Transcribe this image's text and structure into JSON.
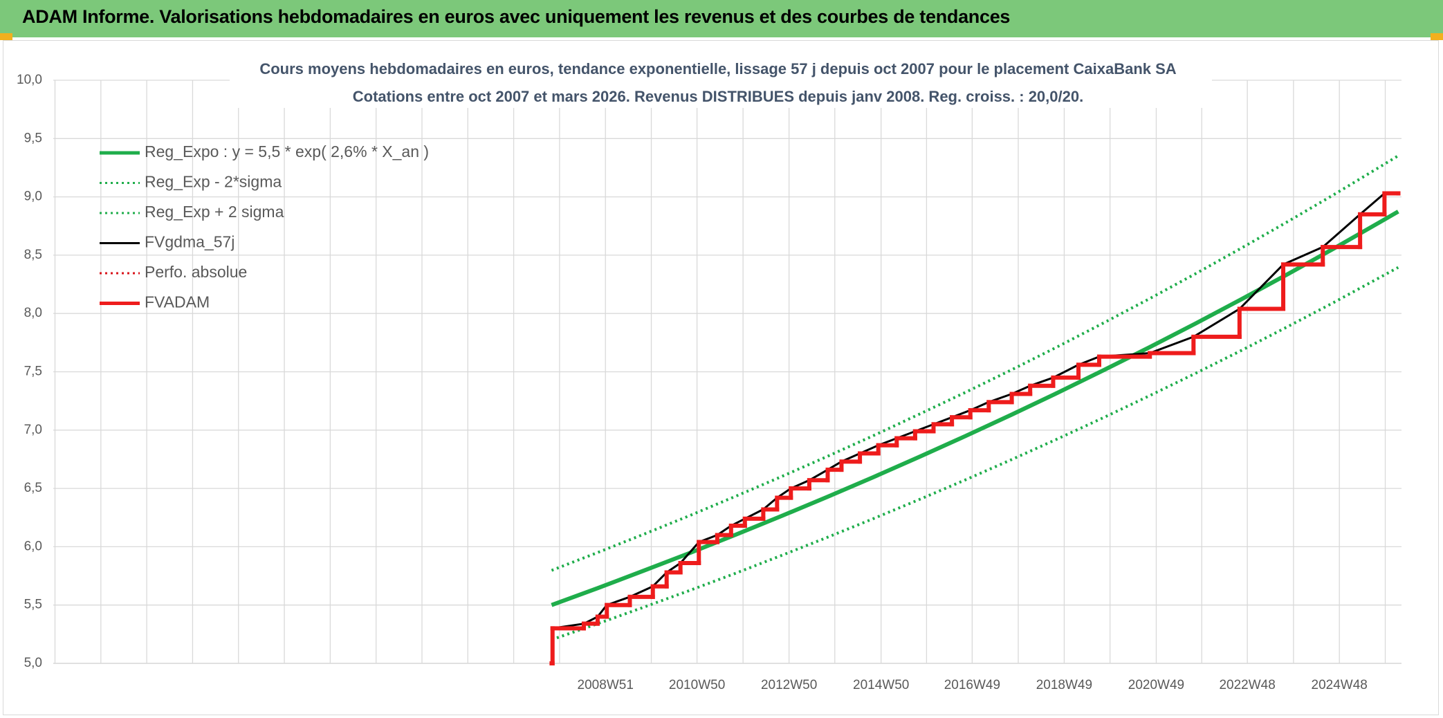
{
  "banner": "ADAM Informe. Valorisations hebdomadaires en euros avec uniquement les revenus et des courbes de tendances",
  "chart_data": {
    "type": "line",
    "title": "Cours moyens hebdomadaires en euros, tendance exponentielle, lissage 57 j depuis oct 2007 pour le placement CaixaBank SA",
    "subtitle": "Cotations entre oct 2007 et mars 2026. Revenus DISTRIBUES depuis janv 2008. Reg. croiss. : 20,0/20.",
    "xlim": [
      1996.97,
      2026.27
    ],
    "xticks": [
      {
        "value": 2008.97,
        "label": "2008W51"
      },
      {
        "value": 2010.96,
        "label": "2010W50"
      },
      {
        "value": 2012.96,
        "label": "2012W50"
      },
      {
        "value": 2014.96,
        "label": "2014W50"
      },
      {
        "value": 2016.94,
        "label": "2016W49"
      },
      {
        "value": 2018.94,
        "label": "2018W49"
      },
      {
        "value": 2020.94,
        "label": "2020W49"
      },
      {
        "value": 2022.92,
        "label": "2022W48"
      },
      {
        "value": 2024.92,
        "label": "2024W48"
      }
    ],
    "ylim": [
      5,
      10
    ],
    "yticks": [
      {
        "value": 5,
        "label": "5,0"
      },
      {
        "value": 5.5,
        "label": "5,5"
      },
      {
        "value": 6,
        "label": "6,0"
      },
      {
        "value": 6.5,
        "label": "6,5"
      },
      {
        "value": 7,
        "label": "7,0"
      },
      {
        "value": 7.5,
        "label": "7,5"
      },
      {
        "value": 8,
        "label": "8,0"
      },
      {
        "value": 8.5,
        "label": "8,5"
      },
      {
        "value": 9,
        "label": "9,0"
      },
      {
        "value": 9.5,
        "label": "9,5"
      },
      {
        "value": 10,
        "label": "10,0"
      }
    ],
    "grid": true,
    "x_minor_grid": true,
    "legend": "upper left",
    "series": [
      {
        "name": "Reg_Expo : y = 5,5 * exp( 2,6% *  X_an )",
        "color": "#1fad4b",
        "style": "solid",
        "width": 6,
        "x": [
          2007.8,
          2008.8,
          2009.8,
          2010.8,
          2011.8,
          2012.8,
          2013.8,
          2014.8,
          2015.8,
          2016.8,
          2017.8,
          2018.8,
          2019.8,
          2020.8,
          2021.8,
          2022.8,
          2023.8,
          2024.8,
          2025.8,
          2026.2
        ],
        "values": [
          5.5,
          5.645,
          5.794,
          5.946,
          6.103,
          6.264,
          6.429,
          6.598,
          6.772,
          6.95,
          7.133,
          7.321,
          7.514,
          7.712,
          7.915,
          8.124,
          8.338,
          8.557,
          8.783,
          8.874
        ]
      },
      {
        "name": "Reg_Exp - 2*sigma",
        "color": "#1fad4b",
        "style": "dotted",
        "width": 4,
        "x": [
          2007.8,
          2008.8,
          2009.8,
          2010.8,
          2011.8,
          2012.8,
          2013.8,
          2014.8,
          2015.8,
          2016.8,
          2017.8,
          2018.8,
          2019.8,
          2020.8,
          2021.8,
          2022.8,
          2023.8,
          2024.8,
          2025.8,
          2026.2
        ],
        "values": [
          5.203,
          5.34,
          5.481,
          5.625,
          5.773,
          5.926,
          6.082,
          6.242,
          6.406,
          6.575,
          6.748,
          6.926,
          7.108,
          7.296,
          7.488,
          7.685,
          7.888,
          8.095,
          8.309,
          8.395
        ]
      },
      {
        "name": "Reg_Exp + 2 sigma",
        "color": "#1fad4b",
        "style": "dotted",
        "width": 4,
        "x": [
          2007.8,
          2008.8,
          2009.8,
          2010.8,
          2011.8,
          2012.8,
          2013.8,
          2014.8,
          2015.8,
          2016.8,
          2017.8,
          2018.8,
          2019.8,
          2020.8,
          2021.8,
          2022.8,
          2023.8,
          2024.8,
          2025.8,
          2026.2
        ],
        "values": [
          5.797,
          5.95,
          6.107,
          6.267,
          6.433,
          6.602,
          6.776,
          6.954,
          7.138,
          7.325,
          7.518,
          7.716,
          7.92,
          8.128,
          8.342,
          8.563,
          8.788,
          9.019,
          9.257,
          9.353
        ]
      },
      {
        "name": "FVgdma_57j",
        "color": "#000000",
        "style": "solid",
        "width": 3,
        "x": [
          2007.82,
          2008.5,
          2008.8,
          2009.0,
          2009.5,
          2010.0,
          2010.3,
          2010.6,
          2011.0,
          2011.4,
          2011.7,
          2012.0,
          2012.4,
          2012.7,
          2013.0,
          2013.4,
          2013.8,
          2014.1,
          2014.5,
          2014.9,
          2015.3,
          2015.7,
          2016.1,
          2016.5,
          2016.9,
          2017.3,
          2017.8,
          2018.2,
          2018.7,
          2019.25,
          2019.7,
          2020.8,
          2021.75,
          2022.75,
          2023.7,
          2024.56,
          2025.37,
          2025.9,
          2026.2
        ],
        "values": [
          5.3,
          5.34,
          5.4,
          5.5,
          5.57,
          5.66,
          5.78,
          5.86,
          6.04,
          6.1,
          6.18,
          6.24,
          6.32,
          6.42,
          6.5,
          6.57,
          6.66,
          6.73,
          6.8,
          6.87,
          6.93,
          6.99,
          7.05,
          7.11,
          7.17,
          7.24,
          7.31,
          7.38,
          7.45,
          7.56,
          7.63,
          7.66,
          7.8,
          8.04,
          8.42,
          8.57,
          8.85,
          9.03,
          9.03
        ]
      },
      {
        "name": "Perfo. absolue",
        "color": "#d9141b",
        "style": "dotted",
        "width": 3,
        "step": true,
        "x": [
          2007.8,
          2007.82,
          2008.5,
          2008.8,
          2009.0,
          2009.5,
          2010.0,
          2010.3,
          2010.6,
          2011.0,
          2011.4,
          2011.7,
          2012.0,
          2012.4,
          2012.7,
          2013.0,
          2013.4,
          2013.8,
          2014.1,
          2014.5,
          2014.9,
          2015.3,
          2015.7,
          2016.1,
          2016.5,
          2016.9,
          2017.3,
          2017.8,
          2018.2,
          2018.7,
          2019.25,
          2019.7,
          2020.8,
          2021.75,
          2022.75,
          2023.7,
          2024.56,
          2025.37,
          2025.9,
          2026.2
        ],
        "values": [
          5.0,
          5.3,
          5.34,
          5.4,
          5.5,
          5.57,
          5.66,
          5.78,
          5.86,
          6.04,
          6.1,
          6.18,
          6.24,
          6.32,
          6.42,
          6.5,
          6.57,
          6.66,
          6.73,
          6.8,
          6.87,
          6.93,
          6.99,
          7.05,
          7.11,
          7.17,
          7.24,
          7.31,
          7.38,
          7.45,
          7.56,
          7.63,
          7.66,
          7.8,
          8.04,
          8.42,
          8.57,
          8.85,
          9.03,
          9.03
        ]
      },
      {
        "name": "FVADAM",
        "color": "#ee1c1c",
        "style": "solid",
        "width": 6,
        "step": true,
        "x": [
          2007.8,
          2007.82,
          2008.5,
          2008.8,
          2009.0,
          2009.5,
          2010.0,
          2010.3,
          2010.6,
          2011.0,
          2011.4,
          2011.7,
          2012.0,
          2012.4,
          2012.7,
          2013.0,
          2013.4,
          2013.8,
          2014.1,
          2014.5,
          2014.9,
          2015.3,
          2015.7,
          2016.1,
          2016.5,
          2016.9,
          2017.3,
          2017.8,
          2018.2,
          2018.7,
          2019.25,
          2019.7,
          2020.8,
          2021.75,
          2022.75,
          2023.7,
          2024.56,
          2025.37,
          2025.9,
          2026.2
        ],
        "values": [
          5.0,
          5.3,
          5.34,
          5.4,
          5.5,
          5.57,
          5.66,
          5.78,
          5.86,
          6.04,
          6.1,
          6.18,
          6.24,
          6.32,
          6.42,
          6.5,
          6.57,
          6.66,
          6.73,
          6.8,
          6.87,
          6.93,
          6.99,
          7.05,
          7.11,
          7.17,
          7.24,
          7.31,
          7.38,
          7.45,
          7.56,
          7.63,
          7.66,
          7.8,
          8.04,
          8.42,
          8.57,
          8.85,
          9.03,
          9.03
        ]
      }
    ]
  }
}
